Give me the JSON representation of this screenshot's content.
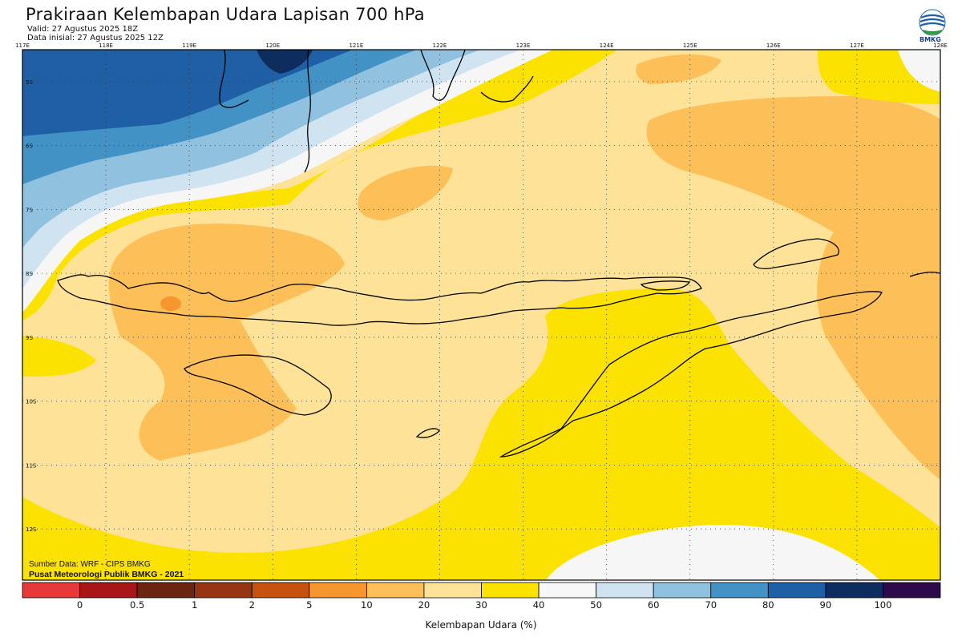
{
  "header": {
    "title": "Prakiraan Kelembapan Udara Lapisan 700 hPa",
    "valid": "Valid: 27 Agustus 2025 18Z",
    "initial": "Data inisial: 27 Agustus 2025 12Z",
    "logo_text": "BMKG"
  },
  "map": {
    "lon_ticks": [
      "117E",
      "118E",
      "119E",
      "120E",
      "121E",
      "122E",
      "123E",
      "124E",
      "125E",
      "126E",
      "127E",
      "128E"
    ],
    "lat_ticks": [
      "5S",
      "6S",
      "7S",
      "8S",
      "9S",
      "10S",
      "11S",
      "12S"
    ],
    "source": "Sumber Data: WRF - CIPS BMKG",
    "publisher": "Pusat Meteorologi Publik BMKG - 2021",
    "lon_range": [
      117,
      128
    ],
    "lat_range": [
      -4.5,
      -12.8
    ]
  },
  "colorbar": {
    "title": "Kelembapan Udara (%)",
    "labels": [
      "0",
      "0.5",
      "1",
      "2",
      "5",
      "10",
      "20",
      "30",
      "40",
      "50",
      "60",
      "70",
      "80",
      "90",
      "100"
    ],
    "colors": [
      "#e8393a",
      "#a81516",
      "#6b2612",
      "#953514",
      "#c5530f",
      "#f6962e",
      "#fdbf58",
      "#fde298",
      "#fbe200",
      "#f7f7f7",
      "#cfe3f0",
      "#90c2df",
      "#4392c5",
      "#1f5fa6",
      "#0c2d5e",
      "#2d0a4a"
    ]
  }
}
